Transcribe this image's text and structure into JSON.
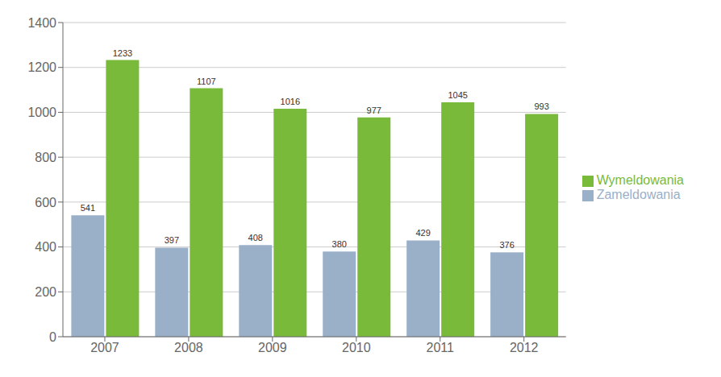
{
  "chart_data": {
    "type": "bar",
    "categories": [
      "2007",
      "2008",
      "2009",
      "2010",
      "2011",
      "2012"
    ],
    "series": [
      {
        "name": "Zameldowania",
        "color": "#9ab0c8",
        "values": [
          541,
          397,
          408,
          380,
          429,
          376
        ]
      },
      {
        "name": "Wymeldowania",
        "color": "#7aba3a",
        "values": [
          1233,
          1107,
          1016,
          977,
          1045,
          993
        ]
      }
    ],
    "ylim": [
      0,
      1400
    ],
    "yticks": [
      0,
      200,
      400,
      600,
      800,
      1000,
      1200,
      1400
    ],
    "grid": true,
    "legend": "right",
    "data_labels": true
  }
}
